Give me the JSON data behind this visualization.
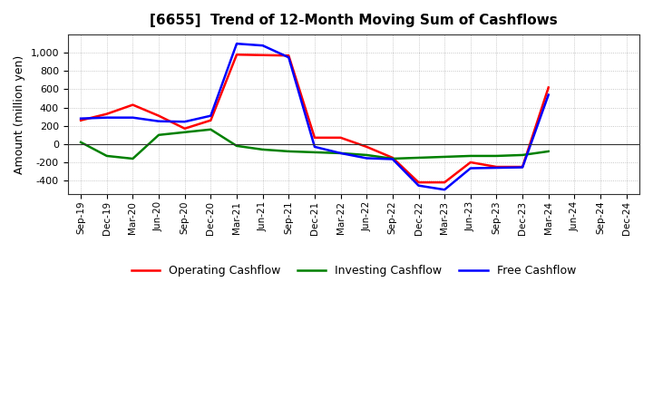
{
  "title": "[6655]  Trend of 12-Month Moving Sum of Cashflows",
  "ylabel": "Amount (million yen)",
  "x_labels": [
    "Sep-19",
    "Dec-19",
    "Mar-20",
    "Jun-20",
    "Sep-20",
    "Dec-20",
    "Mar-21",
    "Jun-21",
    "Sep-21",
    "Dec-21",
    "Mar-22",
    "Jun-22",
    "Sep-22",
    "Dec-22",
    "Mar-23",
    "Jun-23",
    "Sep-23",
    "Dec-23",
    "Mar-24",
    "Jun-24",
    "Sep-24",
    "Dec-24"
  ],
  "operating": [
    260,
    330,
    430,
    310,
    170,
    260,
    980,
    975,
    970,
    70,
    70,
    -30,
    -150,
    -420,
    -420,
    -200,
    -250,
    -250,
    620,
    null,
    null,
    null
  ],
  "investing": [
    20,
    -130,
    -160,
    100,
    130,
    160,
    -20,
    -60,
    -80,
    -90,
    -100,
    -120,
    -160,
    -150,
    -140,
    -130,
    -130,
    -120,
    -80,
    null,
    null,
    null
  ],
  "free": [
    280,
    290,
    290,
    250,
    245,
    310,
    1100,
    1080,
    950,
    -30,
    -100,
    -155,
    -165,
    -455,
    -500,
    -265,
    -260,
    -255,
    540,
    null,
    null,
    null
  ],
  "ylim": [
    -550,
    1200
  ],
  "yticks": [
    -400,
    -200,
    0,
    200,
    400,
    600,
    800,
    1000
  ],
  "colors": {
    "operating": "#ff0000",
    "investing": "#008000",
    "free": "#0000ff"
  },
  "legend": [
    "Operating Cashflow",
    "Investing Cashflow",
    "Free Cashflow"
  ],
  "background": "#ffffff",
  "grid_color": "#999999"
}
